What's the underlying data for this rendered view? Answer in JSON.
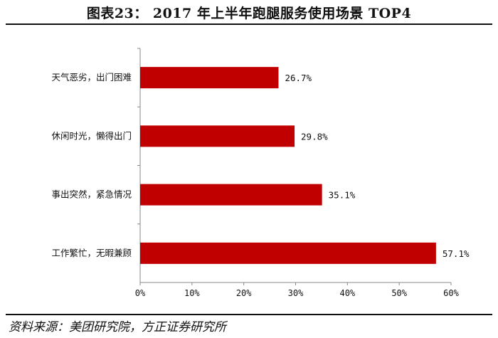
{
  "figure": {
    "title": "图表23：  2017 年上半年跑腿服务使用场景 TOP4",
    "source": "资料来源：美团研究院，方正证券研究所"
  },
  "chart_data": {
    "type": "bar",
    "orientation": "horizontal",
    "categories": [
      "天气恶劣，出门困难",
      "休闲时光，懒得出门",
      "事出突然，紧急情况",
      "工作繁忙，无暇兼顾"
    ],
    "values": [
      26.7,
      29.8,
      35.1,
      57.1
    ],
    "value_labels": [
      "26.7%",
      "29.8%",
      "35.1%",
      "57.1%"
    ],
    "xlim": [
      0,
      60
    ],
    "xticks": [
      0,
      10,
      20,
      30,
      40,
      50,
      60
    ],
    "xtick_labels": [
      "0%",
      "10%",
      "20%",
      "30%",
      "40%",
      "50%",
      "60%"
    ],
    "bar_color": "#c00000",
    "grid": false,
    "legend": "none"
  }
}
